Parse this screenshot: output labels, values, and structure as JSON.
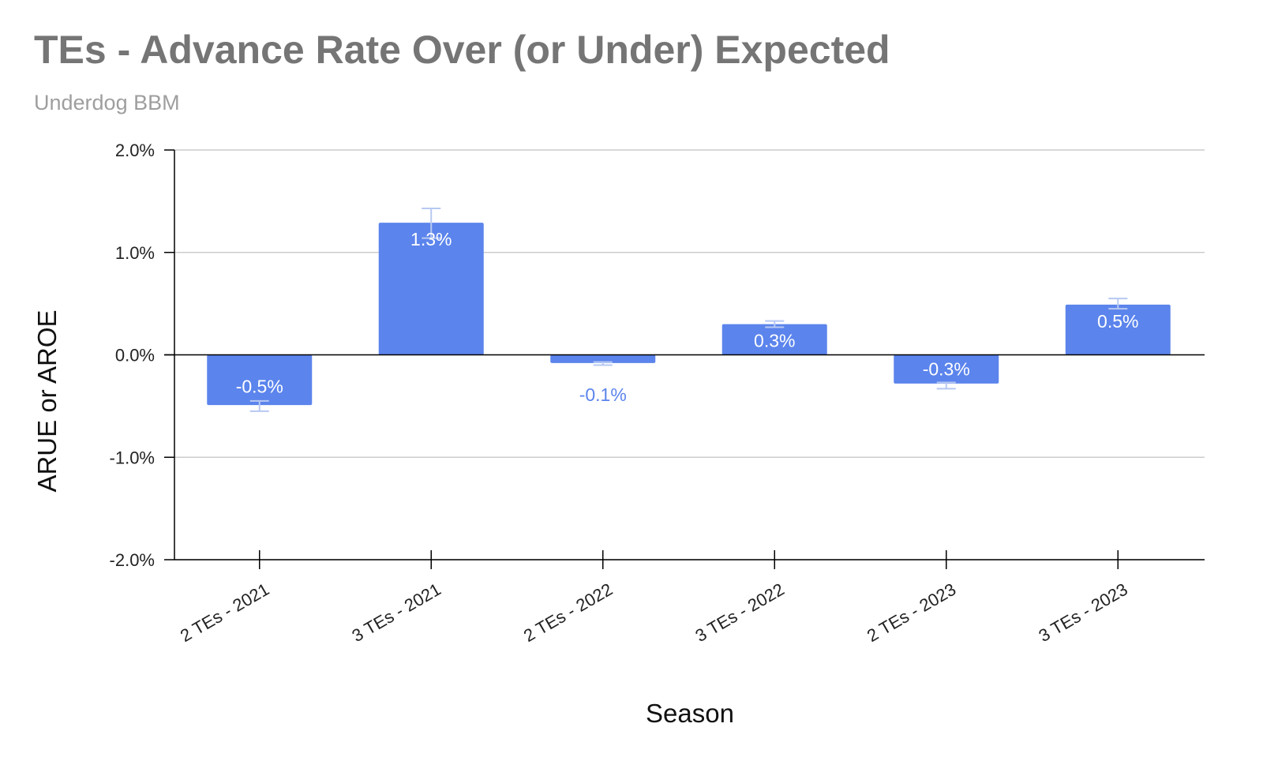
{
  "chart_data": {
    "type": "bar",
    "title": "TEs - Advance Rate Over (or Under) Expected",
    "subtitle": "Underdog BBM",
    "xlabel": "Season",
    "ylabel": "ARUE or AROE",
    "categories": [
      "2 TEs - 2021",
      "3 TEs - 2021",
      "2 TEs - 2022",
      "3 TEs - 2022",
      "2 TEs - 2023",
      "3 TEs - 2023"
    ],
    "values": [
      -0.49,
      1.29,
      -0.08,
      0.3,
      -0.28,
      0.49
    ],
    "data_labels": [
      "-0.5%",
      "1.3%",
      "-0.1%",
      "0.3%",
      "-0.3%",
      "0.5%"
    ],
    "error_bars": [
      {
        "low": -0.55,
        "high": -0.45
      },
      {
        "low": 1.14,
        "high": 1.43
      },
      {
        "low": -0.1,
        "high": -0.07
      },
      {
        "low": 0.27,
        "high": 0.33
      },
      {
        "low": -0.33,
        "high": -0.27
      },
      {
        "low": 0.45,
        "high": 0.55
      }
    ],
    "ylim": [
      -2.0,
      2.0
    ],
    "yticks": [
      2.0,
      1.0,
      0.0,
      -1.0,
      -2.0
    ],
    "ytick_labels": [
      "2.0%",
      "1.0%",
      "0.0%",
      "-1.0%",
      "-2.0%"
    ],
    "grid": true,
    "colors": {
      "bar": "#5b84ec",
      "error_bar": "#b7c8f2",
      "label_inside": "#ffffff",
      "label_outside": "#5b84ec",
      "grid": "#cccccc",
      "axis": "#000000"
    }
  }
}
